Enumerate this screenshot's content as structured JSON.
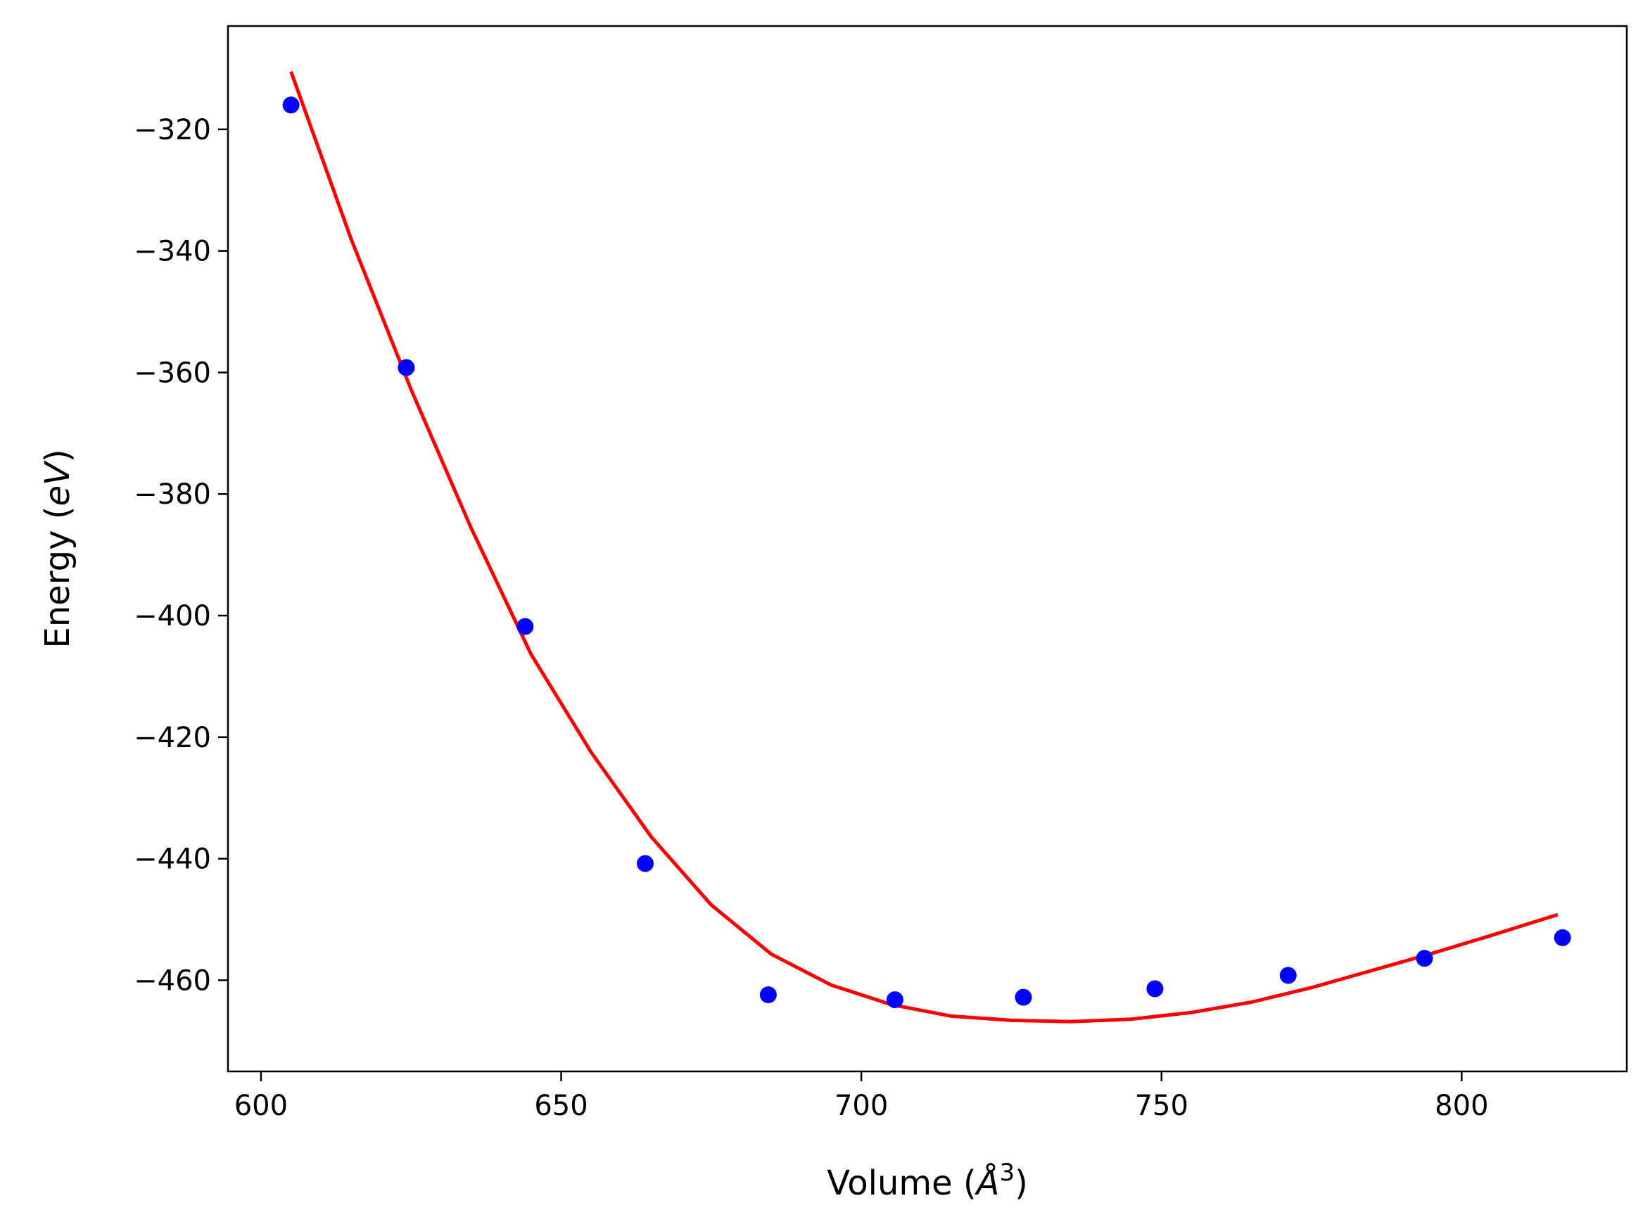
{
  "chart_data": {
    "type": "scatter",
    "title": "",
    "xlabel_parts": {
      "prefix": "Volume (",
      "symbol": "Å",
      "superscript": "3",
      "suffix": ")"
    },
    "ylabel_parts": {
      "prefix": "Energy (",
      "symbol": "eV",
      "suffix": ")"
    },
    "xlim": [
      594.5,
      827.5
    ],
    "ylim": [
      -475,
      -303
    ],
    "xticks": [
      600,
      650,
      700,
      750,
      800
    ],
    "xtick_labels": [
      "600",
      "650",
      "700",
      "750",
      "800"
    ],
    "yticks": [
      -320,
      -340,
      -360,
      -380,
      -400,
      -420,
      -440,
      -460
    ],
    "ytick_labels": [
      "−320",
      "−340",
      "−360",
      "−380",
      "−400",
      "−420",
      "−440",
      "−460"
    ],
    "grid": false,
    "series": [
      {
        "kind": "points",
        "color": "#0000ff",
        "x": [
          605.0,
          624.2,
          644.0,
          664.0,
          684.5,
          705.6,
          727.0,
          748.9,
          771.1,
          793.8,
          816.8
        ],
        "y": [
          -316.0,
          -359.2,
          -401.8,
          -440.8,
          -462.4,
          -463.2,
          -462.8,
          -461.4,
          -459.2,
          -456.4,
          -453.0
        ]
      },
      {
        "kind": "fit-curve",
        "color": "#ff0000",
        "x": [
          605,
          615,
          625,
          635,
          645,
          655,
          665,
          675,
          685,
          695,
          705,
          715,
          725,
          735,
          745,
          755,
          765,
          775,
          785,
          795,
          805,
          816
        ],
        "y": [
          -310.5,
          -338.0,
          -362.8,
          -385.6,
          -406.4,
          -422.5,
          -436.4,
          -447.6,
          -455.7,
          -460.8,
          -464.0,
          -465.9,
          -466.6,
          -466.8,
          -466.4,
          -465.3,
          -463.6,
          -461.2,
          -458.4,
          -455.6,
          -452.6,
          -449.2
        ]
      }
    ]
  }
}
